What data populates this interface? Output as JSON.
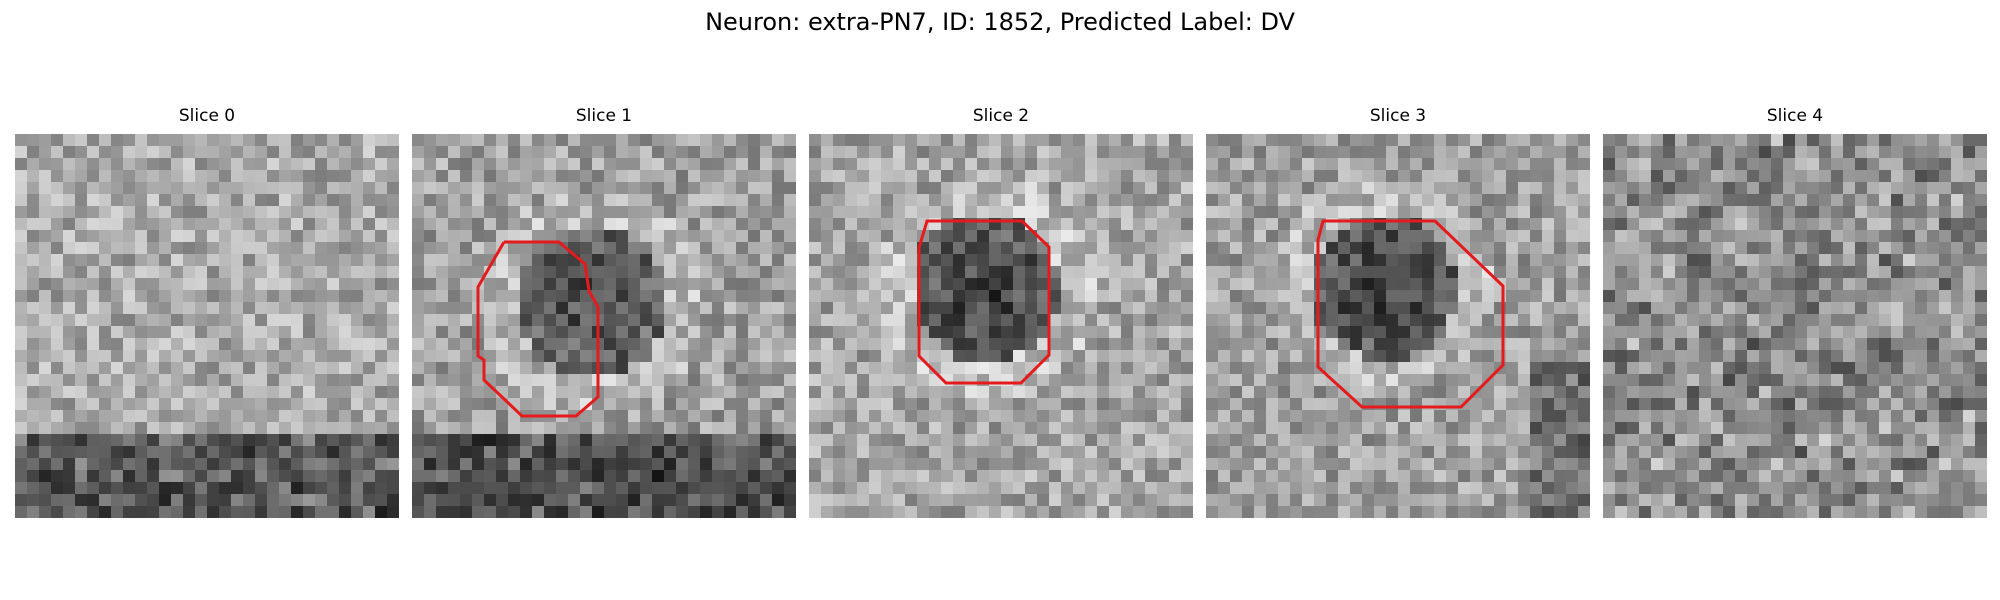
{
  "figure": {
    "title": "Neuron: extra-PN7, ID: 1852, Predicted Label: DV"
  },
  "slices": [
    {
      "title": "Slice 0",
      "has_contour": false
    },
    {
      "title": "Slice 1",
      "has_contour": true
    },
    {
      "title": "Slice 2",
      "has_contour": true
    },
    {
      "title": "Slice 3",
      "has_contour": true
    },
    {
      "title": "Slice 4",
      "has_contour": false
    }
  ],
  "style": {
    "contour_color": "#e41a1c",
    "colormap": "gray"
  }
}
